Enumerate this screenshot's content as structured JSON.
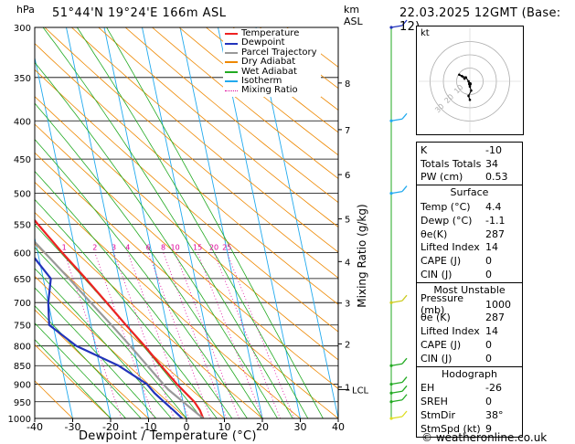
{
  "header": {
    "location": "51°44'N  19°24'E  166m  ASL",
    "datetime": "22.03.2025  12GMT  (Base: 12)",
    "pressure_unit": "hPa",
    "km_label": "km",
    "asl_label": "ASL"
  },
  "axes": {
    "xlabel": "Dewpoint / Temperature (°C)",
    "mixing_label": "Mixing Ratio (g/kg)",
    "lcl_label": "LCL",
    "copyright": "© weatheronline.co.uk",
    "hodo_label": "kt"
  },
  "legend": {
    "items": [
      {
        "label": "Temperature",
        "color": "#ee2222",
        "style": "solid"
      },
      {
        "label": "Dewpoint",
        "color": "#2233bb",
        "style": "solid"
      },
      {
        "label": "Parcel Trajectory",
        "color": "#999999",
        "style": "solid"
      },
      {
        "label": "Dry Adiabat",
        "color": "#ee8800",
        "style": "solid"
      },
      {
        "label": "Wet Adiabat",
        "color": "#22aa22",
        "style": "solid"
      },
      {
        "label": "Isotherm",
        "color": "#22aaee",
        "style": "solid"
      },
      {
        "label": "Mixing Ratio",
        "color": "#dd0099",
        "style": "dotted"
      }
    ]
  },
  "chart_data": {
    "type": "line",
    "subtype": "skew-T log-P",
    "xlim": [
      -40,
      40
    ],
    "ylim": [
      1000,
      300
    ],
    "y_scale": "log",
    "x_ticks": [
      -40,
      -30,
      -20,
      -10,
      0,
      10,
      20,
      30,
      40
    ],
    "pressure_ticks": [
      300,
      350,
      400,
      450,
      500,
      550,
      600,
      650,
      700,
      750,
      800,
      850,
      900,
      950,
      1000
    ],
    "km_ticks": [
      {
        "km": 1,
        "p": 908
      },
      {
        "km": 2,
        "p": 795
      },
      {
        "km": 3,
        "p": 701
      },
      {
        "km": 4,
        "p": 617
      },
      {
        "km": 5,
        "p": 541
      },
      {
        "km": 6,
        "p": 472
      },
      {
        "km": 7,
        "p": 411
      },
      {
        "km": 8,
        "p": 356
      }
    ],
    "mixing_ratio_values": [
      1,
      2,
      3,
      4,
      6,
      8,
      10,
      15,
      20,
      25
    ],
    "lcl_pressure": 915,
    "series": [
      {
        "name": "Temperature",
        "color": "#ee2222",
        "points": [
          [
            1000,
            4.4
          ],
          [
            975,
            4.0
          ],
          [
            950,
            3.0
          ],
          [
            925,
            1.2
          ],
          [
            900,
            -0.6
          ],
          [
            850,
            -3.8
          ],
          [
            800,
            -7.0
          ],
          [
            750,
            -10.8
          ],
          [
            700,
            -14.6
          ],
          [
            650,
            -18.8
          ],
          [
            600,
            -23.6
          ],
          [
            550,
            -28.4
          ],
          [
            500,
            -33.4
          ],
          [
            450,
            -38.6
          ],
          [
            400,
            -45.0
          ],
          [
            350,
            -51.5
          ],
          [
            300,
            -56.0
          ]
        ]
      },
      {
        "name": "Dewpoint",
        "color": "#2233bb",
        "points": [
          [
            1000,
            -1.1
          ],
          [
            975,
            -3.0
          ],
          [
            950,
            -5.0
          ],
          [
            925,
            -7.0
          ],
          [
            900,
            -8.5
          ],
          [
            850,
            -15.0
          ],
          [
            800,
            -25.0
          ],
          [
            750,
            -31.0
          ],
          [
            700,
            -30.0
          ],
          [
            650,
            -28.0
          ],
          [
            600,
            -32.0
          ],
          [
            550,
            -40.0
          ],
          [
            500,
            -57.0
          ],
          [
            450,
            -70.0
          ],
          [
            400,
            -70.0
          ],
          [
            350,
            -72.0
          ],
          [
            300,
            -70.0
          ]
        ]
      },
      {
        "name": "Parcel Trajectory",
        "color": "#999999",
        "points": [
          [
            1000,
            4.4
          ],
          [
            950,
            0.0
          ],
          [
            915,
            -3.2
          ],
          [
            900,
            -4.2
          ],
          [
            850,
            -7.4
          ],
          [
            800,
            -10.8
          ],
          [
            750,
            -14.6
          ],
          [
            700,
            -18.8
          ],
          [
            650,
            -23.2
          ],
          [
            600,
            -28.2
          ],
          [
            550,
            -33.6
          ],
          [
            500,
            -39.6
          ],
          [
            450,
            -46.0
          ],
          [
            400,
            -53.0
          ],
          [
            350,
            -60.5
          ],
          [
            300,
            -68.0
          ]
        ]
      }
    ]
  },
  "winds": {
    "color": "#22aa22",
    "barbs": [
      {
        "p": 300,
        "color": "#2233bb"
      },
      {
        "p": 400,
        "color": "#22aaee"
      },
      {
        "p": 500,
        "color": "#22aaee"
      },
      {
        "p": 700,
        "color": "#cccc22"
      },
      {
        "p": 850,
        "color": "#22aa22"
      },
      {
        "p": 900,
        "color": "#22aa22"
      },
      {
        "p": 925,
        "color": "#22aa22"
      },
      {
        "p": 950,
        "color": "#22aa22"
      },
      {
        "p": 1000,
        "color": "#dddd22"
      }
    ]
  },
  "hodograph": {
    "ring_labels": [
      "10",
      "20",
      "30"
    ],
    "trace_kt": [
      [
        0,
        -14
      ],
      [
        -1,
        -11
      ],
      [
        1,
        -7
      ],
      [
        0,
        -4
      ],
      [
        -1,
        0
      ],
      [
        -3,
        3
      ],
      [
        -6,
        4
      ],
      [
        -8,
        5
      ],
      [
        -4,
        2
      ]
    ],
    "storm_motion_kt": [
      0,
      -2
    ]
  },
  "indices": {
    "basic": [
      {
        "label": "K",
        "value": "-10"
      },
      {
        "label": "Totals Totals",
        "value": "34"
      },
      {
        "label": "PW (cm)",
        "value": "0.53"
      }
    ],
    "surface": {
      "title": "Surface",
      "rows": [
        {
          "label": "Temp (°C)",
          "value": "4.4"
        },
        {
          "label": "Dewp (°C)",
          "value": "-1.1"
        },
        {
          "label": "θe(K)",
          "value": "287"
        },
        {
          "label": "Lifted Index",
          "value": "14"
        },
        {
          "label": "CAPE (J)",
          "value": "0"
        },
        {
          "label": "CIN (J)",
          "value": "0"
        }
      ]
    },
    "most_unstable": {
      "title": "Most Unstable",
      "rows": [
        {
          "label": "Pressure (mb)",
          "value": "1000"
        },
        {
          "label": "θe (K)",
          "value": "287"
        },
        {
          "label": "Lifted Index",
          "value": "14"
        },
        {
          "label": "CAPE (J)",
          "value": "0"
        },
        {
          "label": "CIN (J)",
          "value": "0"
        }
      ]
    },
    "hodograph": {
      "title": "Hodograph",
      "rows": [
        {
          "label": "EH",
          "value": "-26"
        },
        {
          "label": "SREH",
          "value": "0"
        },
        {
          "label": "StmDir",
          "value": "38°"
        },
        {
          "label": "StmSpd (kt)",
          "value": "9"
        }
      ]
    }
  }
}
